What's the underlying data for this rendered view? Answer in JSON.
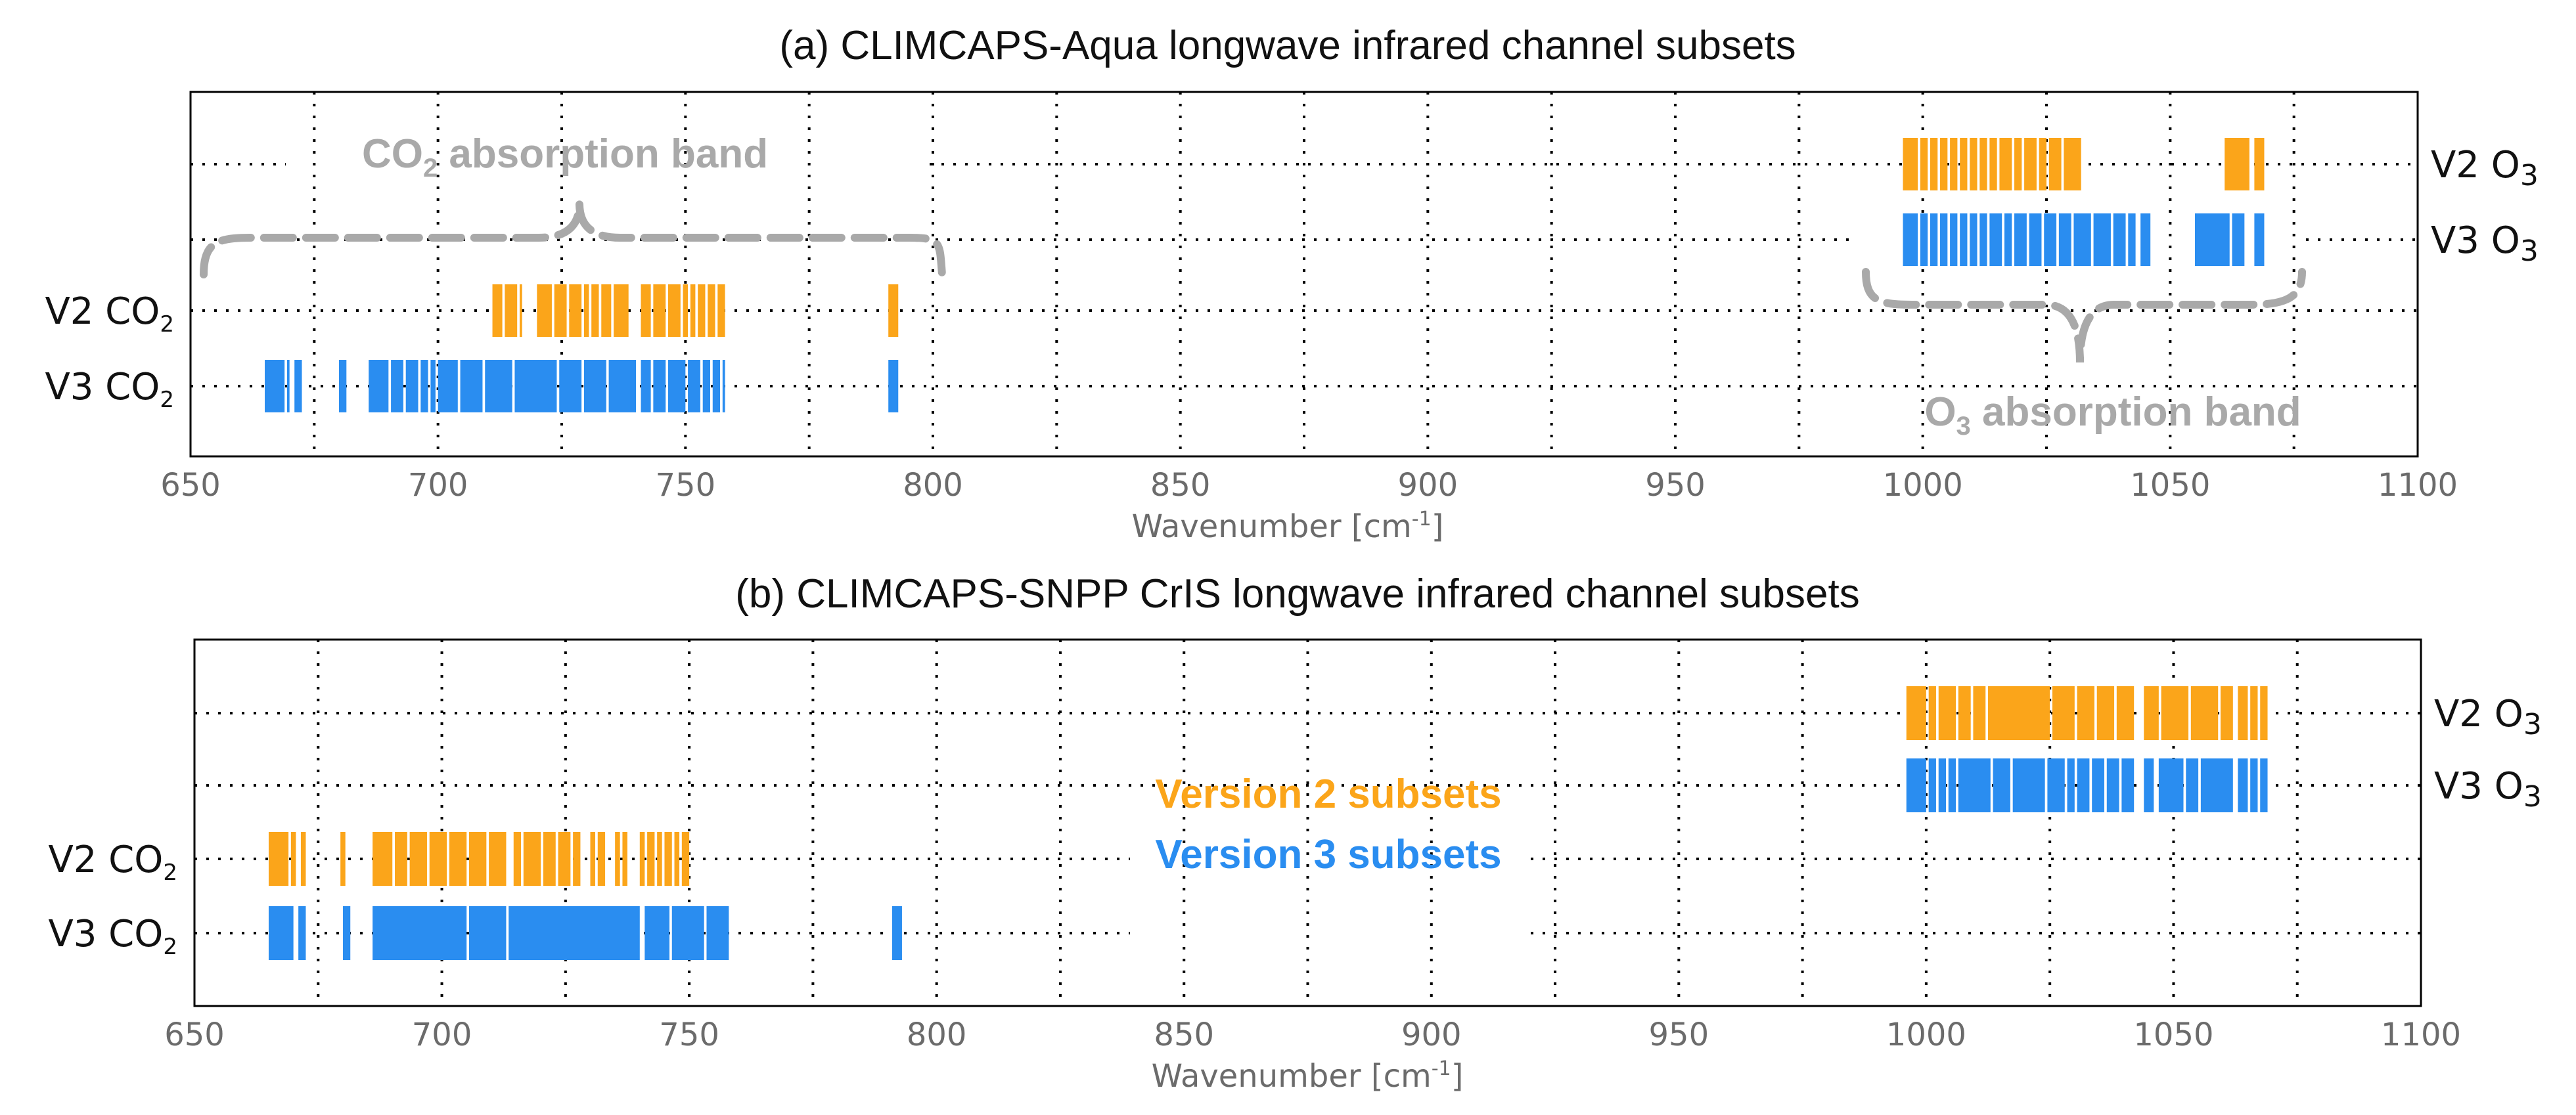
{
  "colors": {
    "v2": "#FBA51A",
    "v3": "#2A8DF0",
    "band": "#a9a9a9"
  },
  "chart_data": [
    {
      "type": "bar",
      "title": "(a) CLIMCAPS-Aqua longwave infrared channel subsets",
      "xlabel": "Wavenumber [cm",
      "xlabel_sup": "-1",
      "xlabel_end": "]",
      "xlim": [
        650,
        1100
      ],
      "xticks": [
        "650",
        "700",
        "750",
        "800",
        "850",
        "900",
        "950",
        "1000",
        "1050",
        "1100"
      ],
      "grid": true,
      "rows": [
        {
          "label": "V2 CO",
          "sub": "2",
          "side": "left",
          "color": "v2",
          "ranges": [
            [
              711,
              713
            ],
            [
              713.5,
              716
            ],
            [
              716.5,
              717
            ],
            [
              720,
              723
            ],
            [
              723.5,
              726
            ],
            [
              726.5,
              729
            ],
            [
              729.5,
              730.5
            ],
            [
              731,
              732.5
            ],
            [
              733,
              735
            ],
            [
              735.5,
              738.5
            ],
            [
              741,
              743
            ],
            [
              743.5,
              746
            ],
            [
              746.5,
              749
            ],
            [
              749.5,
              750.5
            ],
            [
              751,
              752
            ],
            [
              752.5,
              754
            ],
            [
              754.5,
              756
            ],
            [
              756.5,
              758
            ],
            [
              791,
              793
            ]
          ]
        },
        {
          "label": "V3 CO",
          "sub": "2",
          "side": "left",
          "color": "v3",
          "ranges": [
            [
              665,
              669
            ],
            [
              669.5,
              670
            ],
            [
              671,
              672.5
            ],
            [
              680,
              681.5
            ],
            [
              686,
              690
            ],
            [
              690.5,
              693
            ],
            [
              693.5,
              696
            ],
            [
              696.5,
              698
            ],
            [
              698.5,
              699.5
            ],
            [
              700,
              704
            ],
            [
              704.5,
              709
            ],
            [
              709.5,
              715
            ],
            [
              715.5,
              724
            ],
            [
              724.5,
              729
            ],
            [
              729.5,
              734
            ],
            [
              734.5,
              740
            ],
            [
              741,
              743
            ],
            [
              743.5,
              746
            ],
            [
              746.5,
              750
            ],
            [
              750.5,
              753
            ],
            [
              753.5,
              755
            ],
            [
              755.5,
              757
            ],
            [
              757.5,
              758
            ],
            [
              791,
              793
            ]
          ]
        },
        {
          "label": "V2 O",
          "sub": "3",
          "side": "right",
          "color": "v2",
          "ranges": [
            [
              996,
              999
            ],
            [
              999.5,
              1001
            ],
            [
              1001.5,
              1003
            ],
            [
              1003.5,
              1005
            ],
            [
              1005.5,
              1007
            ],
            [
              1007.5,
              1009
            ],
            [
              1009.5,
              1011
            ],
            [
              1011.5,
              1013
            ],
            [
              1013.5,
              1015
            ],
            [
              1015.5,
              1018
            ],
            [
              1018.5,
              1020
            ],
            [
              1020.5,
              1023
            ],
            [
              1023.5,
              1025
            ],
            [
              1025.5,
              1028
            ],
            [
              1028.5,
              1032
            ],
            [
              1061,
              1066
            ],
            [
              1067,
              1069
            ]
          ]
        },
        {
          "label": "V3 O",
          "sub": "3",
          "side": "right",
          "color": "v3",
          "ranges": [
            [
              996,
              999
            ],
            [
              999.5,
              1001
            ],
            [
              1001.5,
              1003
            ],
            [
              1003.5,
              1005
            ],
            [
              1005.5,
              1007
            ],
            [
              1007.5,
              1009
            ],
            [
              1009.5,
              1011
            ],
            [
              1011.5,
              1013
            ],
            [
              1013.5,
              1016
            ],
            [
              1016.5,
              1018
            ],
            [
              1018.5,
              1021
            ],
            [
              1021.5,
              1024
            ],
            [
              1024.5,
              1027
            ],
            [
              1027.5,
              1030
            ],
            [
              1030.5,
              1034
            ],
            [
              1034.5,
              1038
            ],
            [
              1038.5,
              1041
            ],
            [
              1041.5,
              1043
            ],
            [
              1044,
              1046
            ],
            [
              1055,
              1062
            ],
            [
              1062.5,
              1065
            ],
            [
              1067,
              1069
            ]
          ]
        }
      ],
      "annotations": [
        {
          "text": "CO",
          "sub": "2",
          "suffix": " absorption band"
        },
        {
          "text": "O",
          "sub": "3",
          "suffix": " absorption band"
        }
      ]
    },
    {
      "type": "bar",
      "title": "(b) CLIMCAPS-SNPP CrIS longwave infrared channel subsets",
      "xlabel": "Wavenumber [cm",
      "xlabel_sup": "-1",
      "xlabel_end": "]",
      "xlim": [
        650,
        1100
      ],
      "xticks": [
        "650",
        "700",
        "750",
        "800",
        "850",
        "900",
        "950",
        "1000",
        "1050",
        "1100"
      ],
      "grid": true,
      "rows": [
        {
          "label": "V2 CO",
          "sub": "2",
          "side": "left",
          "color": "v2",
          "ranges": [
            [
              665,
              669
            ],
            [
              669.5,
              670.5
            ],
            [
              671.5,
              672.5
            ],
            [
              679.5,
              680.5
            ],
            [
              686,
              690
            ],
            [
              690.5,
              693
            ],
            [
              693.5,
              697
            ],
            [
              697.5,
              701
            ],
            [
              701.5,
              705
            ],
            [
              705.5,
              709
            ],
            [
              709.5,
              713
            ],
            [
              714.5,
              716
            ],
            [
              716.5,
              720
            ],
            [
              720.5,
              723
            ],
            [
              723.5,
              726
            ],
            [
              726.5,
              728
            ],
            [
              730,
              731
            ],
            [
              731.5,
              733
            ],
            [
              735,
              736
            ],
            [
              736.5,
              737.5
            ],
            [
              740,
              741
            ],
            [
              741.5,
              743
            ],
            [
              743.5,
              744.5
            ],
            [
              745,
              746.5
            ],
            [
              747,
              748
            ],
            [
              748.5,
              750
            ]
          ]
        },
        {
          "label": "V3 CO",
          "sub": "2",
          "side": "left",
          "color": "v3",
          "ranges": [
            [
              665,
              670
            ],
            [
              671,
              672.5
            ],
            [
              680,
              681.5
            ],
            [
              686,
              705
            ],
            [
              705.5,
              713
            ],
            [
              713.5,
              740
            ],
            [
              741,
              746
            ],
            [
              746.5,
              753
            ],
            [
              753.5,
              758
            ],
            [
              791,
              793
            ]
          ]
        },
        {
          "label": "V2 O",
          "sub": "3",
          "side": "right",
          "color": "v2",
          "ranges": [
            [
              996,
              1000
            ],
            [
              1000.5,
              1002
            ],
            [
              1002.5,
              1006
            ],
            [
              1006.5,
              1009
            ],
            [
              1009.5,
              1012
            ],
            [
              1012.5,
              1025
            ],
            [
              1025.5,
              1030
            ],
            [
              1030.5,
              1034
            ],
            [
              1034.5,
              1038
            ],
            [
              1038.5,
              1042
            ],
            [
              1044,
              1047
            ],
            [
              1047.5,
              1053
            ],
            [
              1053.5,
              1059
            ],
            [
              1059.5,
              1062
            ],
            [
              1063,
              1065
            ],
            [
              1065.5,
              1067
            ],
            [
              1067.5,
              1069
            ]
          ]
        },
        {
          "label": "V3 O",
          "sub": "3",
          "side": "right",
          "color": "v3",
          "ranges": [
            [
              996,
              1000
            ],
            [
              1000.5,
              1002
            ],
            [
              1002.5,
              1004
            ],
            [
              1004.5,
              1006
            ],
            [
              1006.5,
              1013
            ],
            [
              1013.5,
              1017
            ],
            [
              1017.5,
              1024
            ],
            [
              1024.5,
              1028
            ],
            [
              1028.5,
              1030
            ],
            [
              1030.5,
              1033
            ],
            [
              1033.5,
              1036
            ],
            [
              1036.5,
              1039
            ],
            [
              1039.5,
              1042
            ],
            [
              1044,
              1046
            ],
            [
              1047,
              1052
            ],
            [
              1052.5,
              1055
            ],
            [
              1055.5,
              1062
            ],
            [
              1063,
              1065
            ],
            [
              1065.5,
              1067
            ],
            [
              1067.5,
              1069
            ]
          ]
        }
      ],
      "legend": [
        {
          "text": "Version 2 subsets",
          "color": "v2"
        },
        {
          "text": "Version 3 subsets",
          "color": "v3"
        }
      ]
    }
  ]
}
